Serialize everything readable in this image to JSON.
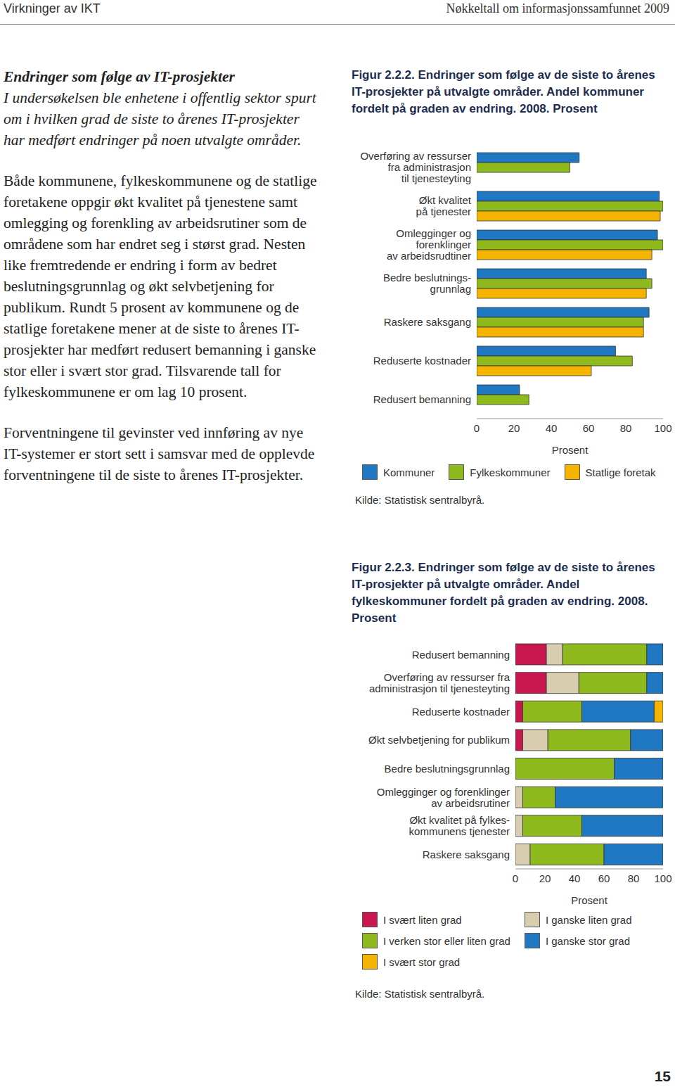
{
  "header": {
    "left": "Virkninger av IKT",
    "right": "Nøkkeltall om informasjonssamfunnet 2009"
  },
  "body": {
    "heading": "Endringer som følge av IT-prosjekter",
    "intro": "I undersøkelsen ble enhetene i offentlig sektor spurt om i hvilken grad de siste to årenes IT-prosjekter har medført endringer på noen utvalgte områder.",
    "paragraphs": [
      "Både kommunene, fylkeskommunene og de statlige foretakene oppgir økt kvalitet på tjenestene samt omlegging og forenkling av arbeidsrutiner som de områdene som har endret seg i størst grad. Nesten like fremtredende er endring i form av bedret beslutningsgrunnlag og økt selvbetjening for publikum. Rundt 5 prosent av kommunene og de statlige foretakene mener at de siste to årenes IT-prosjekter har medført redusert bemanning i ganske stor eller i svært stor grad. Tilsvarende tall for fylkeskommunene er om lag 10 prosent.",
      "Forventningene til gevinster ved innføring av nye IT-systemer er stort sett i samsvar med de opplevde forventningene til de siste to årenes IT-prosjekter."
    ]
  },
  "chart_data": [
    {
      "type": "bar",
      "orientation": "horizontal",
      "title": "Figur 2.2.2. Endringer som følge av de siste to årenes IT-prosjekter på utvalgte områder. Andel kommuner fordelt på graden av endring. 2008. Prosent",
      "categories": [
        "Overføring av ressurser\nfra administrasjon\ntil tjenesteyting",
        "Økt kvalitet\npå tjenester",
        "Omlegginger og\nforenklinger\nav arbeidsrudtiner",
        "Bedre beslutnings-\ngrunnlag",
        "Raskere saksgang",
        "Reduserte kostnader",
        "Redusert bemanning"
      ],
      "series": [
        {
          "name": "Kommuner",
          "color": "#1f78c1",
          "values": [
            55,
            98,
            97,
            91,
            92.5,
            74.5,
            23
          ]
        },
        {
          "name": "Fylkeskommuner",
          "color": "#8fba1e",
          "values": [
            50,
            100,
            100,
            94,
            89.5,
            83.5,
            28
          ]
        },
        {
          "name": "Statlige foretak",
          "color": "#f5b400",
          "values": [
            null,
            98.5,
            94,
            91,
            89.5,
            61.5,
            null
          ]
        }
      ],
      "xlim": [
        0,
        100
      ],
      "xticks": [
        0,
        20,
        40,
        60,
        80,
        100
      ],
      "xlabel": "Prosent",
      "grid": false,
      "legend": "bottom",
      "annotations": [
        "Kilde: Statistisk sentralbyrå."
      ]
    },
    {
      "type": "bar",
      "orientation": "horizontal",
      "stacked": true,
      "title": "Figur 2.2.3. Endringer som følge av de siste to årenes IT-prosjekter på utvalgte områder. Andel fylkeskommuner fordelt på graden av endring. 2008. Prosent",
      "categories": [
        "Redusert bemanning",
        "Overføring av ressurser fra\nadministrasjon til tjenesteyting",
        "Reduserte kostnader",
        "Økt selvbetjening for publikum",
        "Bedre beslutningsgrunnlag",
        "Omlegginger og forenklinger\nav arbeidsrutiner",
        "Økt kvalitet på fylkes-\nkommunens tjenester",
        "Raskere saksgang"
      ],
      "series": [
        {
          "name": "I svært liten grad",
          "color": "#c8174f",
          "values": [
            21,
            21,
            5,
            5,
            0,
            0,
            0,
            0
          ]
        },
        {
          "name": "I ganske liten grad",
          "color": "#d9cdb0",
          "values": [
            11,
            22,
            0,
            17,
            0,
            5,
            5,
            10
          ]
        },
        {
          "name": "I verken stor eller liten grad",
          "color": "#8fba1e",
          "values": [
            57,
            46,
            40,
            56,
            67,
            22,
            40,
            50
          ]
        },
        {
          "name": "I ganske stor grad",
          "color": "#1f78c1",
          "values": [
            11,
            11,
            49,
            22,
            33,
            73,
            55,
            40
          ]
        },
        {
          "name": "I svært stor grad",
          "color": "#f5b400",
          "values": [
            0,
            0,
            6,
            0,
            0,
            0,
            0,
            0
          ]
        }
      ],
      "xlim": [
        0,
        100
      ],
      "xticks": [
        0,
        20,
        40,
        60,
        80,
        100
      ],
      "xlabel": "Prosent",
      "grid": false,
      "legend": "bottom",
      "annotations": [
        "Kilde: Statistisk sentralbyrå."
      ]
    }
  ],
  "page_number": "15"
}
